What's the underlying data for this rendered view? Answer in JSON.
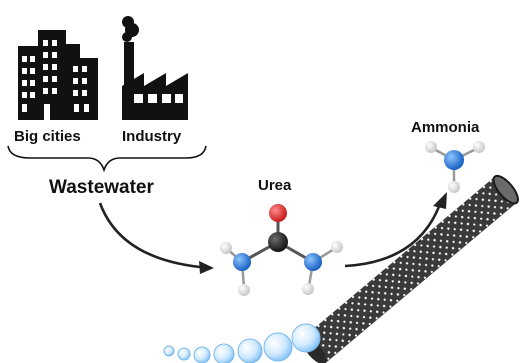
{
  "labels": {
    "big_cities": "Big cities",
    "industry": "Industry",
    "wastewater": "Wastewater",
    "urea": "Urea",
    "ammonia": "Ammonia"
  },
  "icons": {
    "cities": "city-buildings-icon",
    "industry": "factory-icon"
  },
  "colors": {
    "icon_black": "#111111",
    "oxygen": "#e02a2a",
    "carbon": "#262626",
    "nitrogen": "#2f7fe0",
    "hydrogen": "#e6e6e6",
    "tube": "#3a3a3a",
    "bubble": "#a9d8ff"
  }
}
